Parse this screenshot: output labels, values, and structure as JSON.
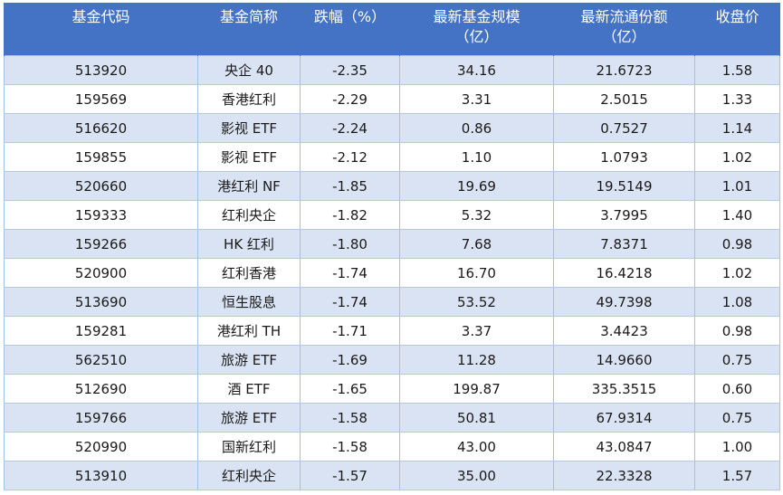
{
  "chart_data": {
    "type": "table",
    "columns": [
      {
        "line1": "基金代码",
        "line2": ""
      },
      {
        "line1": "基金简称",
        "line2": ""
      },
      {
        "line1": "跌幅（%）",
        "line2": ""
      },
      {
        "line1": "最新基金规模",
        "line2": "（亿）"
      },
      {
        "line1": "最新流通份额",
        "line2": "（亿）"
      },
      {
        "line1": "收盘价",
        "line2": ""
      }
    ],
    "rows": [
      [
        "513920",
        "央企 40",
        "-2.35",
        "34.16",
        "21.6723",
        "1.58"
      ],
      [
        "159569",
        "香港红利",
        "-2.29",
        "3.31",
        "2.5015",
        "1.33"
      ],
      [
        "516620",
        "影视 ETF",
        "-2.24",
        "0.86",
        "0.7527",
        "1.14"
      ],
      [
        "159855",
        "影视 ETF",
        "-2.12",
        "1.10",
        "1.0793",
        "1.02"
      ],
      [
        "520660",
        "港红利 NF",
        "-1.85",
        "19.69",
        "19.5149",
        "1.01"
      ],
      [
        "159333",
        "红利央企",
        "-1.82",
        "5.32",
        "3.7995",
        "1.40"
      ],
      [
        "159266",
        "HK 红利",
        "-1.80",
        "7.68",
        "7.8371",
        "0.98"
      ],
      [
        "520900",
        "红利香港",
        "-1.74",
        "16.70",
        "16.4218",
        "1.02"
      ],
      [
        "513690",
        "恒生股息",
        "-1.74",
        "53.52",
        "49.7398",
        "1.08"
      ],
      [
        "159281",
        "港红利 TH",
        "-1.71",
        "3.37",
        "3.4423",
        "0.98"
      ],
      [
        "562510",
        "旅游 ETF",
        "-1.69",
        "11.28",
        "14.9660",
        "0.75"
      ],
      [
        "512690",
        "酒 ETF",
        "-1.65",
        "199.87",
        "335.3515",
        "0.60"
      ],
      [
        "159766",
        "旅游 ETF",
        "-1.58",
        "50.81",
        "67.9314",
        "0.75"
      ],
      [
        "520990",
        "国新红利",
        "-1.58",
        "43.00",
        "43.0847",
        "1.00"
      ],
      [
        "513910",
        "红利央企",
        "-1.57",
        "35.00",
        "22.3328",
        "1.57"
      ]
    ],
    "colors": {
      "header_bg": "#4472c4",
      "header_text": "#ffffff",
      "band_row_bg": "#dae3f3",
      "plain_row_bg": "#ffffff",
      "border": "#9dc3e6"
    }
  }
}
